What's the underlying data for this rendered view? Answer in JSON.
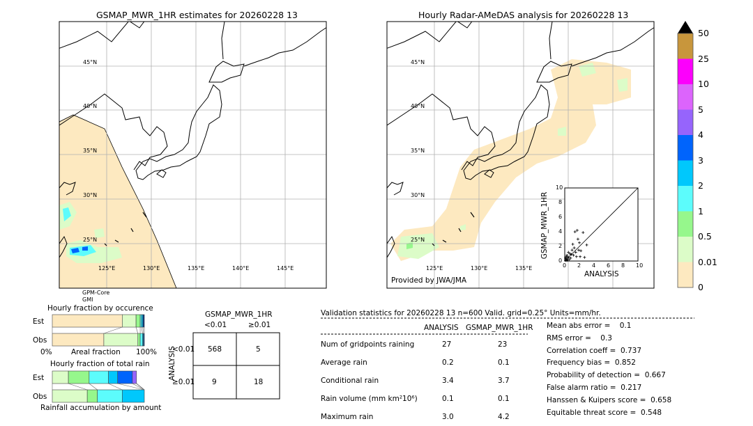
{
  "left_map": {
    "title": "GSMAP_MWR_1HR estimates for 20260228 13",
    "sensor_line1": "GPM-Core",
    "sensor_line2": "GMI"
  },
  "right_map": {
    "title": "Hourly Radar-AMeDAS analysis for 20260228 13",
    "credit": "Provided by JWA/JMA"
  },
  "map_axes": {
    "lat_labels": [
      "45°N",
      "40°N",
      "35°N",
      "30°N",
      "25°N"
    ],
    "lon_labels": [
      "125°E",
      "130°E",
      "135°E",
      "140°E",
      "145°E"
    ],
    "lon_range": [
      120,
      150
    ],
    "lat_range": [
      20,
      50
    ]
  },
  "colorbar": {
    "tick_labels": [
      "0",
      "0.01",
      "0.5",
      "1",
      "2",
      "3",
      "4",
      "5",
      "10",
      "25",
      "50"
    ],
    "colors": [
      "#fde9c0",
      "#dcfcc8",
      "#96f78c",
      "#5cfcfc",
      "#00c8fc",
      "#0064fc",
      "#9664fc",
      "#dc64fc",
      "#fc00fc",
      "#c8963c"
    ],
    "extend_color": "#000000"
  },
  "chart_data": [
    {
      "type": "scatter",
      "xlabel": "ANALYSIS",
      "ylabel": "GSMAP_MWR_1HR",
      "xlim": [
        0,
        10
      ],
      "ylim": [
        0,
        10
      ],
      "ticks": [
        "0",
        "2",
        "4",
        "6",
        "8",
        "10"
      ],
      "points": [
        [
          0.1,
          0.1
        ],
        [
          0.2,
          0.3
        ],
        [
          0.3,
          0.1
        ],
        [
          0.1,
          0.4
        ],
        [
          0.4,
          0.2
        ],
        [
          0.2,
          0.6
        ],
        [
          0.5,
          0.5
        ],
        [
          0.3,
          0.8
        ],
        [
          0.6,
          0.2
        ],
        [
          0.7,
          1.0
        ],
        [
          0.8,
          0.4
        ],
        [
          0.5,
          1.2
        ],
        [
          1.0,
          1.5
        ],
        [
          1.1,
          2.3
        ],
        [
          1.2,
          0.8
        ],
        [
          1.3,
          1.8
        ],
        [
          1.4,
          4.0
        ],
        [
          1.5,
          1.2
        ],
        [
          1.7,
          4.2
        ],
        [
          1.8,
          3.0
        ],
        [
          1.9,
          1.5
        ],
        [
          2.0,
          2.5
        ],
        [
          2.1,
          0.6
        ],
        [
          2.2,
          1.4
        ],
        [
          2.5,
          3.9
        ],
        [
          2.7,
          0.5
        ],
        [
          3.0,
          2.2
        ],
        [
          1.6,
          0.6
        ],
        [
          0.9,
          0.9
        ],
        [
          0.4,
          0.5
        ]
      ]
    },
    {
      "type": "bar",
      "title": "Hourly fraction by occurence",
      "xlabel": "Areal fraction",
      "x_tick_left": "0%",
      "x_tick_right": "100%",
      "categories": [
        "Est",
        "Obs"
      ],
      "series": [
        {
          "values_percent": [
            76,
            15,
            4.5,
            1.5,
            1.5,
            1.5
          ]
        },
        {
          "values_percent": [
            56,
            37,
            2.5,
            2.5,
            1,
            1
          ]
        }
      ]
    },
    {
      "type": "bar",
      "title": "Hourly fraction of total rain",
      "xlabel": "Rainfall accumulation by amount",
      "categories": [
        "Est",
        "Obs"
      ],
      "series": [
        {
          "values_percent": [
            17.5,
            22.5,
            21,
            10,
            16,
            4.5,
            0,
            0
          ]
        },
        {
          "values_percent": [
            38,
            11,
            27,
            24
          ]
        }
      ]
    }
  ],
  "contingency": {
    "title": "GSMAP_MWR_1HR",
    "col_labels": [
      "<0.01",
      "≥0.01"
    ],
    "row_axis": "ANALYSIS",
    "row_labels": [
      "<0.01",
      "≥0.01"
    ],
    "cells": [
      [
        "568",
        "5"
      ],
      [
        "9",
        "18"
      ]
    ]
  },
  "stats": {
    "header": "Validation statistics for 20260228 13  n=600 Valid. grid=0.25° Units=mm/hr.",
    "col_analysis": "ANALYSIS",
    "col_gsmap": "GSMAP_MWR_1HR",
    "rows": [
      {
        "label": "Num of gridpoints raining",
        "a": "27",
        "g": "23"
      },
      {
        "label": "Average rain",
        "a": "0.2",
        "g": "0.1"
      },
      {
        "label": "Conditional rain",
        "a": "3.4",
        "g": "3.7"
      },
      {
        "label": "Rain volume (mm km²10⁶)",
        "a": "0.1",
        "g": "0.1"
      },
      {
        "label": "Maximum rain",
        "a": "3.0",
        "g": "4.2"
      }
    ],
    "scores": [
      "Mean abs error =    0.1",
      "RMS error =    0.3",
      "Correlation coeff =  0.737",
      "Frequency bias =  0.852",
      "Probability of detection =  0.667",
      "False alarm ratio =  0.217",
      "Hanssen & Kuipers score =  0.658",
      "Equitable threat score =  0.548"
    ]
  }
}
